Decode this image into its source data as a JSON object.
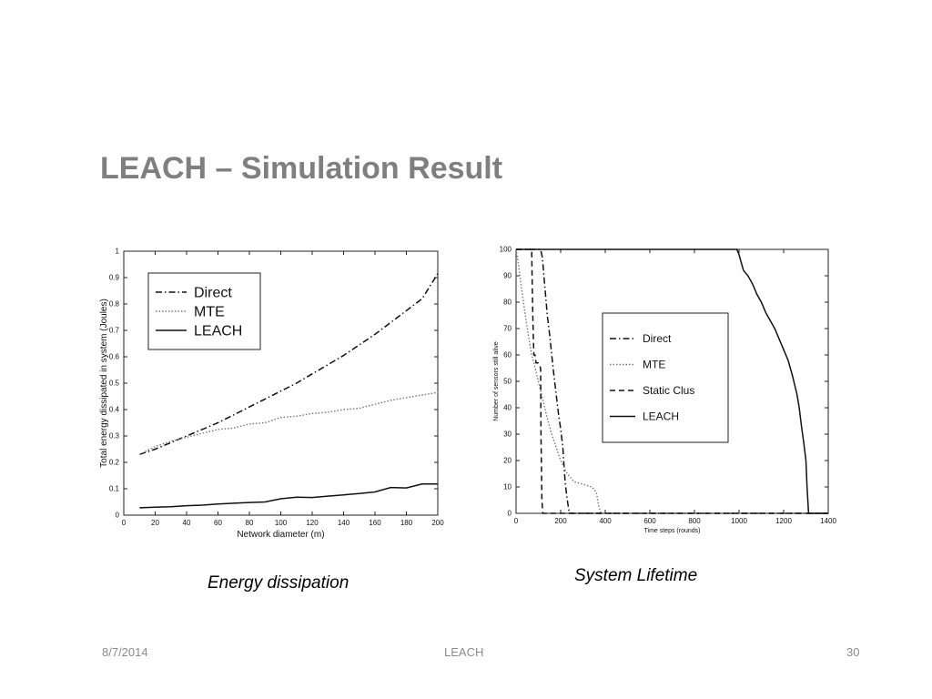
{
  "slide": {
    "title": "LEACH – Simulation Result",
    "footer": {
      "date": "8/7/2014",
      "center": "LEACH",
      "page": "30"
    }
  },
  "captions": [
    "Energy dissipation",
    "System Lifetime"
  ],
  "chart_data": [
    {
      "type": "line",
      "xlabel": "Network diameter (m)",
      "ylabel": "Total energy dissipated in system (Joules)",
      "xlim": [
        0,
        200
      ],
      "ylim": [
        0,
        1
      ],
      "xticks": [
        0,
        20,
        40,
        60,
        80,
        100,
        120,
        140,
        160,
        180,
        200
      ],
      "yticks": [
        0,
        0.1,
        0.2,
        0.3,
        0.4,
        0.5,
        0.6,
        0.7,
        0.8,
        0.9,
        1
      ],
      "grid": false,
      "legend": {
        "placement": "top-left"
      },
      "series": [
        {
          "name": "Direct",
          "style": "dashdot",
          "x": [
            10,
            20,
            30,
            40,
            50,
            60,
            70,
            80,
            90,
            100,
            110,
            120,
            130,
            140,
            150,
            160,
            170,
            180,
            190,
            200
          ],
          "y": [
            0.23,
            0.25,
            0.275,
            0.3,
            0.325,
            0.35,
            0.38,
            0.41,
            0.44,
            0.47,
            0.5,
            0.535,
            0.57,
            0.605,
            0.645,
            0.685,
            0.73,
            0.775,
            0.82,
            0.915
          ]
        },
        {
          "name": "MTE",
          "style": "dotted",
          "x": [
            10,
            20,
            30,
            40,
            50,
            60,
            70,
            80,
            90,
            100,
            110,
            120,
            130,
            140,
            150,
            160,
            170,
            180,
            190,
            200
          ],
          "y": [
            0.23,
            0.26,
            0.28,
            0.295,
            0.31,
            0.325,
            0.33,
            0.345,
            0.35,
            0.37,
            0.375,
            0.385,
            0.39,
            0.4,
            0.405,
            0.42,
            0.435,
            0.445,
            0.455,
            0.465
          ]
        },
        {
          "name": "LEACH",
          "style": "solid",
          "x": [
            10,
            20,
            30,
            40,
            50,
            60,
            70,
            80,
            90,
            100,
            110,
            120,
            130,
            140,
            150,
            160,
            170,
            180,
            190,
            200
          ],
          "y": [
            0.028,
            0.03,
            0.032,
            0.036,
            0.038,
            0.042,
            0.045,
            0.048,
            0.05,
            0.062,
            0.068,
            0.067,
            0.072,
            0.077,
            0.082,
            0.088,
            0.105,
            0.103,
            0.118,
            0.118
          ]
        }
      ]
    },
    {
      "type": "line",
      "xlabel": "Time steps (rounds)",
      "ylabel": "Number of sensors still alive",
      "xlim": [
        0,
        1400
      ],
      "ylim": [
        0,
        100
      ],
      "xticks": [
        0,
        200,
        400,
        600,
        800,
        1000,
        1200,
        1400
      ],
      "yticks": [
        0,
        10,
        20,
        30,
        40,
        50,
        60,
        70,
        80,
        90,
        100
      ],
      "grid": false,
      "legend": {
        "placement": "center-left"
      },
      "series": [
        {
          "name": "Direct",
          "style": "dashdot",
          "x": [
            0,
            110,
            118,
            125,
            133,
            140,
            150,
            160,
            170,
            180,
            190,
            200,
            210,
            215,
            220,
            228,
            235,
            240,
            1400
          ],
          "y": [
            100,
            100,
            97,
            90,
            82,
            75,
            68,
            60,
            52,
            45,
            38,
            32,
            25,
            18,
            12,
            6,
            2,
            0,
            0
          ]
        },
        {
          "name": "MTE",
          "style": "dotted",
          "x": [
            0,
            10,
            20,
            30,
            40,
            50,
            60,
            70,
            80,
            100,
            120,
            140,
            160,
            180,
            200,
            230,
            260,
            300,
            340,
            360,
            370,
            380,
            1400
          ],
          "y": [
            100,
            95,
            88,
            82,
            76,
            70,
            65,
            60,
            57,
            50,
            43,
            36,
            30,
            25,
            20,
            15,
            12,
            11,
            10,
            8,
            3,
            0,
            0
          ]
        },
        {
          "name": "Static Clus",
          "style": "dashed",
          "x": [
            0,
            70,
            72,
            75,
            78,
            80,
            85,
            90,
            100,
            110,
            112,
            116,
            120,
            1400
          ],
          "y": [
            100,
            100,
            90,
            75,
            65,
            60,
            60,
            57,
            57,
            55,
            30,
            5,
            0,
            0
          ]
        },
        {
          "name": "LEACH",
          "style": "solid",
          "x": [
            0,
            990,
            1000,
            1010,
            1020,
            1040,
            1060,
            1080,
            1100,
            1120,
            1140,
            1160,
            1180,
            1200,
            1220,
            1240,
            1260,
            1270,
            1280,
            1290,
            1300,
            1305,
            1310,
            1312,
            1400
          ],
          "y": [
            100,
            100,
            98,
            95,
            92,
            90,
            87,
            83,
            80,
            76,
            73,
            70,
            66,
            62,
            58,
            52,
            45,
            40,
            33,
            27,
            20,
            10,
            3,
            0,
            0
          ]
        }
      ]
    }
  ]
}
